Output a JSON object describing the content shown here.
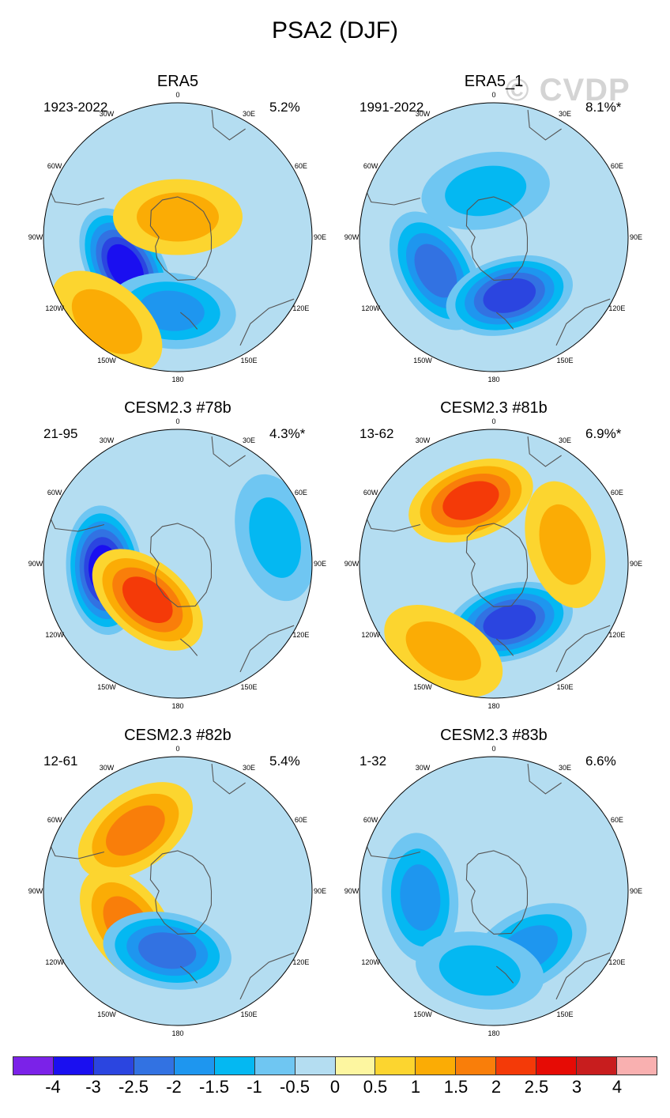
{
  "title": "PSA2 (DJF)",
  "watermark": "© CVDP",
  "lon_labels": [
    "0",
    "30E",
    "60E",
    "90E",
    "120E",
    "150E",
    "180",
    "150W",
    "120W",
    "90W",
    "60W",
    "30W"
  ],
  "panels": [
    {
      "title": "ERA5",
      "period": "1923-2022",
      "pct": "5.2%"
    },
    {
      "title": "ERA5_1",
      "period": "1991-2022",
      "pct": "8.1%*"
    },
    {
      "title": "CESM2.3 #78b",
      "period": "21-95",
      "pct": "4.3%*"
    },
    {
      "title": "CESM2.3 #81b",
      "period": "13-62",
      "pct": "6.9%*"
    },
    {
      "title": "CESM2.3 #82b",
      "period": "12-61",
      "pct": "5.4%"
    },
    {
      "title": "CESM2.3 #83b",
      "period": "1-32",
      "pct": "6.6%"
    }
  ],
  "colorbar": {
    "labels": [
      "-4",
      "-3",
      "-2.5",
      "-2",
      "-1.5",
      "-1",
      "-0.5",
      "0",
      "0.5",
      "1",
      "1.5",
      "2",
      "2.5",
      "3",
      "4"
    ],
    "colors": [
      "#7b22e8",
      "#1a0ff0",
      "#2b45e0",
      "#3272e2",
      "#1e96ef",
      "#04b8f2",
      "#6fc6f2",
      "#b4ddf1",
      "#fdf6a0",
      "#fcd52f",
      "#fbac05",
      "#f97e0a",
      "#f43a08",
      "#e60b05",
      "#c81d1e",
      "#f9b0b0"
    ]
  },
  "chart_data": {
    "type": "heatmap",
    "title": "PSA2 (DJF)",
    "projection": "south polar stereographic",
    "variable": "sea level pressure anomaly pattern (PSA2 mode, DJF)",
    "contour_levels": [
      -4,
      -3,
      -2.5,
      -2,
      -1.5,
      -1,
      -0.5,
      0,
      0.5,
      1,
      1.5,
      2,
      2.5,
      3,
      4
    ],
    "panels": [
      {
        "dataset": "ERA5",
        "period": "1923-2022",
        "variance_explained": "5.2%",
        "features": [
          {
            "lon": -120,
            "colat": 0.45,
            "value": -3,
            "kind": "low"
          },
          {
            "lon": -175,
            "colat": 0.55,
            "value": -1.5,
            "kind": "low"
          },
          {
            "lon": 0,
            "colat": 0.15,
            "value": 1,
            "kind": "high"
          },
          {
            "lon": -140,
            "colat": 0.82,
            "value": 1,
            "kind": "high"
          }
        ]
      },
      {
        "dataset": "ERA5_1",
        "period": "1991-2022",
        "variance_explained": "8.1%*",
        "features": [
          {
            "lon": -120,
            "colat": 0.5,
            "value": -2,
            "kind": "low"
          },
          {
            "lon": 165,
            "colat": 0.45,
            "value": -2.5,
            "kind": "low"
          },
          {
            "lon": -10,
            "colat": 0.35,
            "value": -1,
            "kind": "low"
          }
        ]
      },
      {
        "dataset": "CESM2.3 #78b",
        "period": "21-95",
        "variance_explained": "4.3%*",
        "features": [
          {
            "lon": -95,
            "colat": 0.55,
            "value": -3,
            "kind": "low"
          },
          {
            "lon": -140,
            "colat": 0.35,
            "value": 2,
            "kind": "high"
          },
          {
            "lon": 75,
            "colat": 0.75,
            "value": -1,
            "kind": "low"
          }
        ]
      },
      {
        "dataset": "CESM2.3 #81b",
        "period": "13-62",
        "variance_explained": "6.9%*",
        "features": [
          {
            "lon": -20,
            "colat": 0.5,
            "value": 2,
            "kind": "high"
          },
          {
            "lon": 165,
            "colat": 0.45,
            "value": -2.5,
            "kind": "low"
          },
          {
            "lon": 75,
            "colat": 0.55,
            "value": 1,
            "kind": "high"
          },
          {
            "lon": -150,
            "colat": 0.75,
            "value": 1,
            "kind": "high"
          }
        ]
      },
      {
        "dataset": "CESM2.3 #82b",
        "period": "12-61",
        "variance_explained": "5.4%",
        "features": [
          {
            "lon": -35,
            "colat": 0.55,
            "value": 1.5,
            "kind": "high"
          },
          {
            "lon": -125,
            "colat": 0.45,
            "value": 1.5,
            "kind": "high"
          },
          {
            "lon": -170,
            "colat": 0.45,
            "value": -2,
            "kind": "low"
          }
        ]
      },
      {
        "dataset": "CESM2.3 #83b",
        "period": "1-32",
        "variance_explained": "6.6%",
        "features": [
          {
            "lon": -95,
            "colat": 0.55,
            "value": -1.5,
            "kind": "low"
          },
          {
            "lon": 150,
            "colat": 0.5,
            "value": -1.5,
            "kind": "low"
          },
          {
            "lon": -170,
            "colat": 0.6,
            "value": -1,
            "kind": "low"
          }
        ]
      }
    ]
  }
}
